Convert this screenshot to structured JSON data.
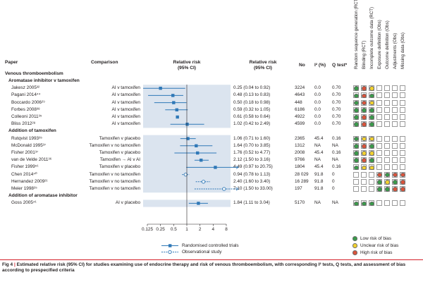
{
  "colors": {
    "low": "#3a9a4a",
    "unclear": "#f2d12f",
    "high": "#d9533b",
    "marker": "#2f78b7",
    "band": "#dbe4ef",
    "caption_accent": "#d4202a"
  },
  "headers": {
    "paper": "Paper",
    "comparison": "Comparison",
    "plot_title": "Relative risk",
    "plot_ci": "(95% CI)",
    "rr_title": "Relative risk",
    "rr_ci": "(95% CI)",
    "no": "No",
    "i2": "I² (%)",
    "q": "Q test*"
  },
  "bias_columns": [
    "Random sequence generation (RCT)",
    "Blinding (RCT)",
    "Incomplete outcome data (RCT)",
    "Exposure definition (Obs)",
    "Outcome definition (Obs)",
    "Adjustments (Obs)",
    "Missing data (Obs)"
  ],
  "title_section": "Venous thromboembolism",
  "groups": [
    {
      "label": "Aromatase inhibitor v tamoxifen",
      "rows": [
        {
          "paper": "Jakesz 2005³²",
          "comparison": "AI v tamoxifen",
          "rr_text": "0.25 (0.04 to 0.92)",
          "no": "3224",
          "i2": "0.0",
          "q": "0.70",
          "rr": 0.25,
          "lo": 0.04,
          "hi": 0.92,
          "type": "rct",
          "bias": [
            "low",
            "high",
            "unclear",
            "",
            "",
            "",
            ""
          ]
        },
        {
          "paper": "Pagani 2014⁴⁴",
          "comparison": "AI v tamoxifen",
          "rr_text": "0.48 (0.13 to 0.83)",
          "no": "4643",
          "i2": "0.0",
          "q": "0.70",
          "rr": 0.48,
          "lo": 0.13,
          "hi": 0.83,
          "type": "rct",
          "bias": [
            "low",
            "high",
            "low",
            "",
            "",
            "",
            ""
          ]
        },
        {
          "paper": "Boccardo 2006²⁹",
          "comparison": "AI v tamoxifen",
          "rr_text": "0.50 (0.18 to 0.98)",
          "no": "448",
          "i2": "0.0",
          "q": "0.70",
          "rr": 0.5,
          "lo": 0.18,
          "hi": 0.98,
          "type": "rct",
          "bias": [
            "low",
            "high",
            "unclear",
            "",
            "",
            "",
            ""
          ]
        },
        {
          "paper": "Forbes 2008³⁸",
          "comparison": "AI v tamoxifen",
          "rr_text": "0.59 (0.32 to 1.05)",
          "no": "6186",
          "i2": "0.0",
          "q": "0.70",
          "rr": 0.59,
          "lo": 0.32,
          "hi": 1.05,
          "type": "rct",
          "bias": [
            "low",
            "low",
            "low",
            "",
            "",
            "",
            ""
          ]
        },
        {
          "paper": "Colleoni 2011³⁵",
          "comparison": "AI v tamoxifen",
          "rr_text": "0.61 (0.58 to 0.64)",
          "no": "4922",
          "i2": "0.0",
          "q": "0.70",
          "rr": 0.61,
          "lo": 0.58,
          "hi": 0.64,
          "type": "rct",
          "bias": [
            "low",
            "high",
            "low",
            "",
            "",
            "",
            ""
          ]
        },
        {
          "paper": "Bliss 2012²⁸",
          "comparison": "AI v tamoxifen",
          "rr_text": "1.02 (0.42 to 2.49)",
          "no": "4599",
          "i2": "0.0",
          "q": "0.70",
          "rr": 1.02,
          "lo": 0.42,
          "hi": 2.49,
          "type": "rct",
          "bias": [
            "low",
            "high",
            "low",
            "",
            "",
            "",
            ""
          ]
        }
      ]
    },
    {
      "label": "Addition of tamoxifen",
      "rows": [
        {
          "paper": "Rutqvist 1993³⁵",
          "comparison": "Tamoxifen v placebo",
          "rr_text": "1.06 (0.71 to 1.60)",
          "no": "2365",
          "i2": "45.4",
          "q": "0.16",
          "rr": 1.06,
          "lo": 0.71,
          "hi": 1.6,
          "type": "rct",
          "bias": [
            "low",
            "unclear",
            "unclear",
            "",
            "",
            "",
            ""
          ]
        },
        {
          "paper": "McDonald 1995³⁷",
          "comparison": "Tamoxifen v no tamoxifen",
          "rr_text": "1.64 (0.70 to 3.85)",
          "no": "1312",
          "i2": "NA",
          "q": "NA",
          "rr": 1.64,
          "lo": 0.7,
          "hi": 3.85,
          "type": "rct",
          "bias": [
            "low",
            "high",
            "low",
            "",
            "",
            "",
            ""
          ]
        },
        {
          "paper": "Fisher 2001³⁷",
          "comparison": "Tamoxifen v placebo",
          "rr_text": "1.76 (0.52 to 4.77)",
          "no": "2008",
          "i2": "45.4",
          "q": "0.16",
          "rr": 1.76,
          "lo": 0.52,
          "hi": 4.77,
          "type": "rct",
          "bias": [
            "low",
            "unclear",
            "unclear",
            "",
            "",
            "",
            ""
          ]
        },
        {
          "paper": "van de Velde 2011³⁶",
          "comparison": "Tamoxifen → AI v AI",
          "rr_text": "2.12 (1.50 to 3.16)",
          "no": "9766",
          "i2": "NA",
          "q": "NA",
          "rr": 2.12,
          "lo": 1.5,
          "hi": 3.16,
          "type": "rct",
          "bias": [
            "low",
            "high",
            "low",
            "",
            "",
            "",
            ""
          ]
        },
        {
          "paper": "Fisher 1999⁵¹",
          "comparison": "Tamoxifen v placebo",
          "rr_text": "4.49 (0.97 to 20.75)",
          "no": "1804",
          "i2": "45.4",
          "q": "0.16",
          "rr": 4.49,
          "lo": 0.97,
          "hi": 20.75,
          "type": "rct",
          "bias": [
            "low",
            "unclear",
            "unclear",
            "",
            "",
            "",
            ""
          ]
        },
        {
          "paper": "Chen 2014⁴⁰",
          "comparison": "Tamoxifen v no tamoxifen",
          "rr_text": "0.94 (0.78 to 1.13)",
          "no": "28 029",
          "i2": "91.8",
          "q": "0",
          "rr": 0.94,
          "lo": 0.78,
          "hi": 1.13,
          "type": "obs",
          "bias": [
            "",
            "",
            "",
            "high",
            "low",
            "high",
            "high"
          ]
        },
        {
          "paper": "Hernandez 2009²¹",
          "comparison": "Tamoxifen v no tamoxifen",
          "rr_text": "2.40 (1.60 to 3.40)",
          "no": "16 289",
          "i2": "91.8",
          "q": "0",
          "rr": 2.4,
          "lo": 1.6,
          "hi": 3.4,
          "type": "obs",
          "bias": [
            "",
            "",
            "",
            "low",
            "unclear",
            "low",
            "high"
          ]
        },
        {
          "paper": "Meier 1998²⁵",
          "comparison": "Tamoxifen v no tamoxifen",
          "rr_text": "7.10 (1.50 to 33.00)",
          "no": "197",
          "i2": "91.8",
          "q": "0",
          "rr": 7.1,
          "lo": 1.5,
          "hi": 33.0,
          "type": "obs",
          "bias": [
            "",
            "",
            "",
            "low",
            "low",
            "high",
            "high"
          ]
        }
      ]
    },
    {
      "label": "Addition of aromatase inhibitor",
      "rows": [
        {
          "paper": "Goss 2005⁴¹",
          "comparison": "AI v placebo",
          "rr_text": "1.84 (1.11 to 3.04)",
          "no": "5170",
          "i2": "NA",
          "q": "NA",
          "rr": 1.84,
          "lo": 1.11,
          "hi": 3.04,
          "type": "rct",
          "bias": [
            "low",
            "low",
            "low",
            "",
            "",
            "",
            ""
          ]
        }
      ]
    }
  ],
  "axis": {
    "ticks": [
      "0.125",
      "0.25",
      "0.5",
      "1",
      "2",
      "4",
      "8"
    ],
    "tick_values": [
      0.125,
      0.25,
      0.5,
      1,
      2,
      4,
      8
    ],
    "scale": "log2"
  },
  "legend": {
    "rct": "Randomised controlled trials",
    "obs": "Observational study"
  },
  "bias_legend": {
    "low": "Low risk of bias",
    "unclear": "Unclear risk of bias",
    "high": "High risk of bias"
  },
  "caption": {
    "fig": "Fig 4",
    "text": "Estimated relative risk (95% CI) for studies examining use of endocrine therapy and risk of venous thromboembolism, with corresponding I² tests, Q tests, and assessment of bias according to prespecified criteria"
  },
  "chart_data": {
    "type": "scatter",
    "title": "",
    "xlabel": "Relative risk (95% CI)",
    "ylabel": "",
    "xscale": "log",
    "xlim": [
      0.125,
      8
    ],
    "series": [
      {
        "name": "Randomised controlled trials",
        "points": [
          {
            "label": "Jakesz 2005",
            "x": 0.25,
            "lo": 0.04,
            "hi": 0.92
          },
          {
            "label": "Pagani 2014",
            "x": 0.48,
            "lo": 0.13,
            "hi": 0.83
          },
          {
            "label": "Boccardo 2006",
            "x": 0.5,
            "lo": 0.18,
            "hi": 0.98
          },
          {
            "label": "Forbes 2008",
            "x": 0.59,
            "lo": 0.32,
            "hi": 1.05
          },
          {
            "label": "Colleoni 2011",
            "x": 0.61,
            "lo": 0.58,
            "hi": 0.64
          },
          {
            "label": "Bliss 2012",
            "x": 1.02,
            "lo": 0.42,
            "hi": 2.49
          },
          {
            "label": "Rutqvist 1993",
            "x": 1.06,
            "lo": 0.71,
            "hi": 1.6
          },
          {
            "label": "McDonald 1995",
            "x": 1.64,
            "lo": 0.7,
            "hi": 3.85
          },
          {
            "label": "Fisher 2001",
            "x": 1.76,
            "lo": 0.52,
            "hi": 4.77
          },
          {
            "label": "van de Velde 2011",
            "x": 2.12,
            "lo": 1.5,
            "hi": 3.16
          },
          {
            "label": "Fisher 1999",
            "x": 4.49,
            "lo": 0.97,
            "hi": 20.75
          },
          {
            "label": "Goss 2005",
            "x": 1.84,
            "lo": 1.11,
            "hi": 3.04
          }
        ]
      },
      {
        "name": "Observational study",
        "points": [
          {
            "label": "Chen 2014",
            "x": 0.94,
            "lo": 0.78,
            "hi": 1.13
          },
          {
            "label": "Hernandez 2009",
            "x": 2.4,
            "lo": 1.6,
            "hi": 3.4
          },
          {
            "label": "Meier 1998",
            "x": 7.1,
            "lo": 1.5,
            "hi": 33.0
          }
        ]
      }
    ]
  }
}
